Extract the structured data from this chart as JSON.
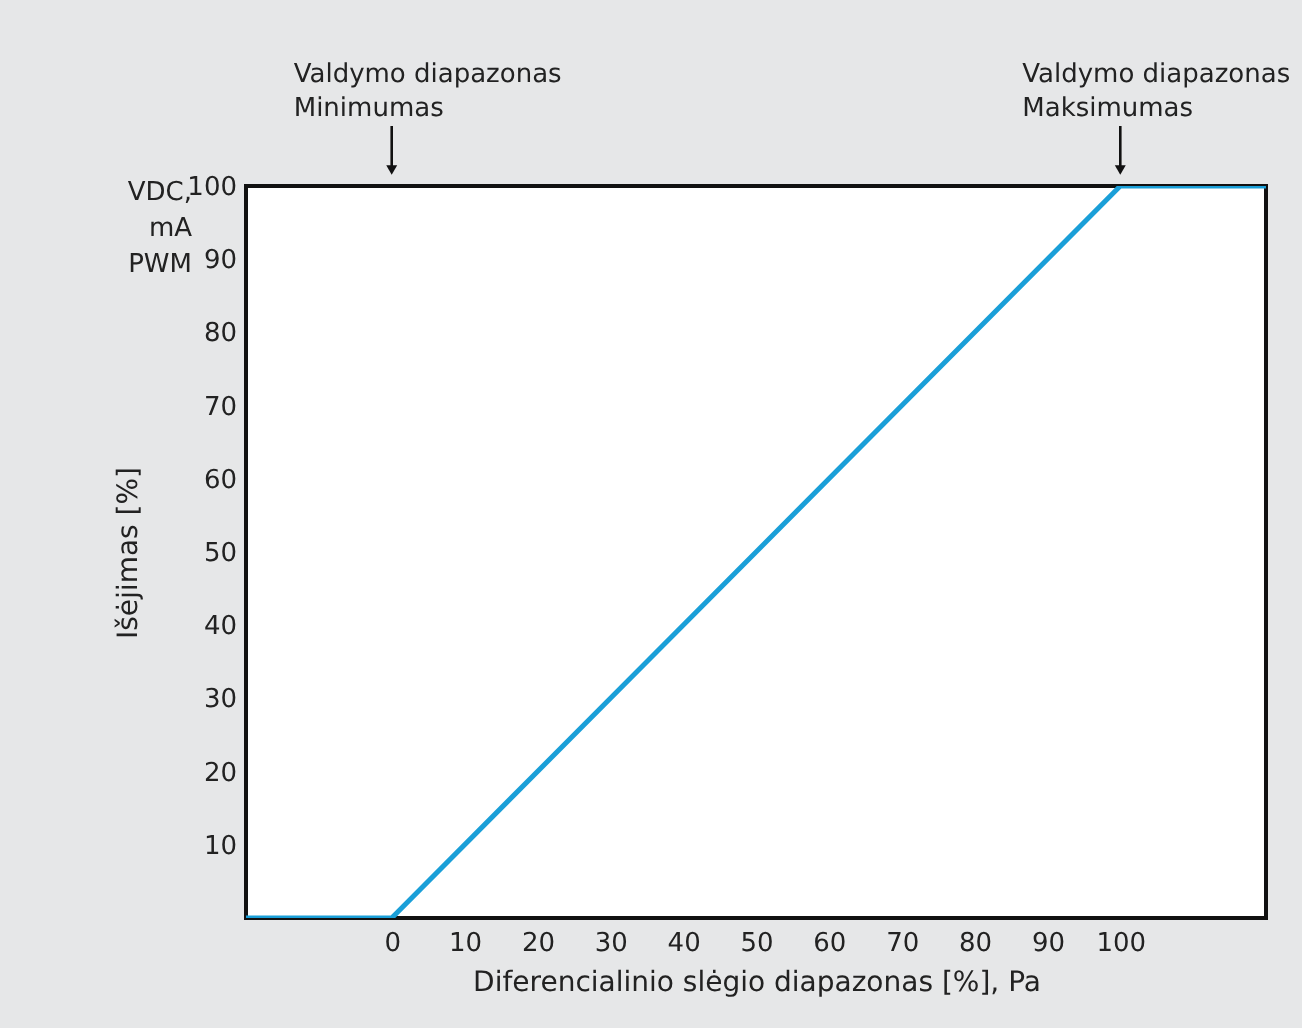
{
  "chart_data": {
    "type": "line",
    "xlabel": "Diferencialinio slėgio diapazonas [%], Pa",
    "ylabel": "Išėjimas [%]",
    "x": [
      -20,
      0,
      100,
      120
    ],
    "series": [
      {
        "color": "#1a9fd8",
        "values": [
          0,
          0,
          100,
          100
        ]
      }
    ],
    "xlim": [
      -20,
      120
    ],
    "xticks": [
      0,
      10,
      20,
      30,
      40,
      50,
      60,
      70,
      80,
      90,
      100
    ],
    "ylim": [
      0,
      100
    ],
    "yticks": [
      10,
      20,
      30,
      40,
      50,
      60,
      70,
      80,
      90,
      100
    ],
    "grid": false,
    "marker": "none",
    "line_style": "solid",
    "annotations": [
      "Valdymo diapazonas\nMinimumas",
      "Valdymo diapazonas\nMaksimumas",
      "VDC,\nmA\nPWM"
    ]
  }
}
